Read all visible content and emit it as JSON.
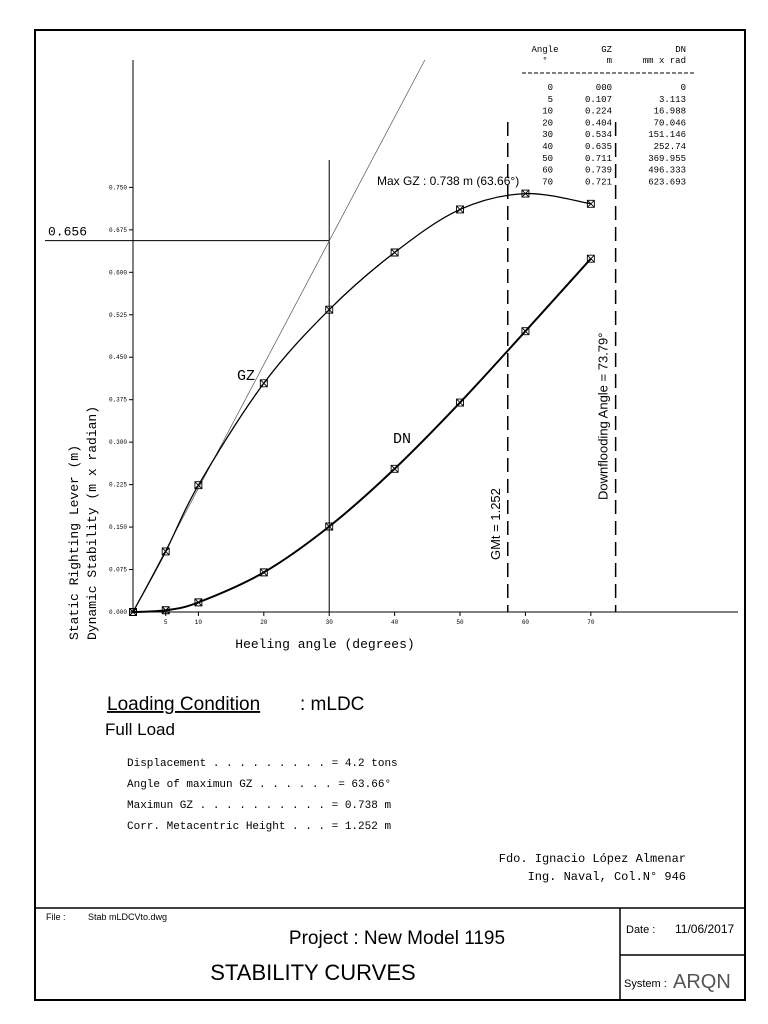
{
  "chart_data": {
    "type": "line",
    "x": [
      0,
      5,
      10,
      20,
      30,
      40,
      50,
      60,
      70
    ],
    "series": [
      {
        "name": "GZ",
        "color": "#000000",
        "values": [
          0,
          0.107,
          0.224,
          0.404,
          0.534,
          0.635,
          0.711,
          0.739,
          0.721
        ]
      },
      {
        "name": "DN",
        "color": "#000000",
        "values": [
          0,
          0.0031,
          0.017,
          0.07,
          0.151,
          0.253,
          0.37,
          0.496,
          0.624
        ]
      }
    ],
    "xlim": [
      0,
      92.5
    ],
    "ylim": [
      0,
      0.975
    ],
    "xticks": [
      5,
      10,
      20,
      30,
      40,
      50,
      60,
      70
    ],
    "yticks": [
      {
        "value": 0,
        "label": "0.000"
      },
      {
        "value": 0.075,
        "label": "0.075"
      },
      {
        "value": 0.15,
        "label": "0.150"
      },
      {
        "value": 0.225,
        "label": "0.225"
      },
      {
        "value": 0.3,
        "label": "0.300"
      },
      {
        "value": 0.375,
        "label": "0.375"
      },
      {
        "value": 0.45,
        "label": "0.450"
      },
      {
        "value": 0.525,
        "label": "0.525"
      },
      {
        "value": 0.6,
        "label": "0.600"
      },
      {
        "value": 0.675,
        "label": "0.675"
      },
      {
        "value": 0.75,
        "label": "0.750"
      }
    ],
    "xlabel": "Heeling angle (degrees)",
    "ylabel": [
      "Static Righting Lever  (m)",
      "Dynamic Stability (m x radian)"
    ],
    "annotation": "Max GZ : 0.738 m  (63.66°)",
    "hline": {
      "value": 0.656,
      "x": 30,
      "label": "0.656"
    },
    "tangent": {
      "x": 57.3,
      "y": 1.252
    },
    "vlines": [
      {
        "value": 57.3,
        "label": "GMt = 1.252"
      },
      {
        "value": 73.79,
        "label": "Downflooding Angle = 73.79°"
      }
    ],
    "table": {
      "headers": [
        [
          "Angle",
          "°"
        ],
        [
          "GZ",
          "m"
        ],
        [
          "DN",
          "mm x rad"
        ]
      ],
      "rows": [
        [
          "0",
          "000",
          "0"
        ],
        [
          "5",
          "0.107",
          "3.113"
        ],
        [
          "10",
          "0.224",
          "16.988"
        ],
        [
          "20",
          "0.404",
          "70.046"
        ],
        [
          "30",
          "0.534",
          "151.146"
        ],
        [
          "40",
          "0.635",
          "252.74"
        ],
        [
          "50",
          "0.711",
          "369.955"
        ],
        [
          "60",
          "0.739",
          "496.333"
        ],
        [
          "70",
          "0.721",
          "623.693"
        ]
      ]
    }
  },
  "document": {
    "loading_title": "Loading Condition",
    "loading_name": " : mLDC",
    "load": "Full Load",
    "details": [
      "Displacement  . . . . . . . . . = 4.2 tons",
      "Angle of maximun GZ . . . . . . = 63.66°",
      "Maximun GZ  . . . . . . . . . . = 0.738 m",
      "Corr. Metacentric Height  . . . = 1.252 m"
    ],
    "signature": [
      "Fdo. Ignacio López Almenar",
      "Ing. Naval, Col.N° 946"
    ],
    "file_label": "File :",
    "file": "Stab mLDCVto.dwg",
    "project": "Project : New Model 1195",
    "drawing_title": "STABILITY  CURVES",
    "date_label": "Date :",
    "date": "11/06/2017",
    "system_label": "System :",
    "system": "ARQN"
  }
}
